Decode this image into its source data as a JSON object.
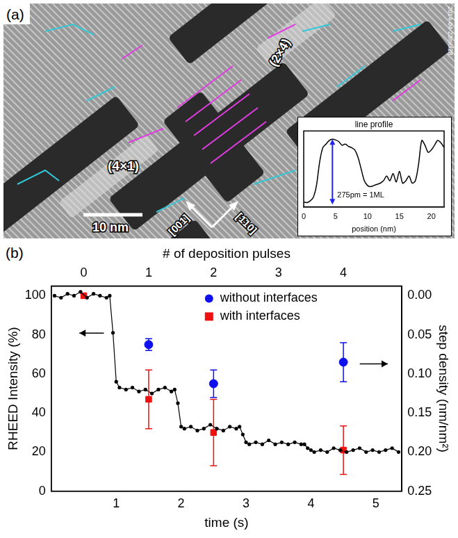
{
  "panel_a": {
    "label": "(a)",
    "stamp": "2014-04-23mul28",
    "regions": [
      "(4×1)",
      "(2×4)"
    ],
    "scale_bar": "10 nm",
    "directions": [
      "[001]",
      "[1̄10]"
    ]
  },
  "chart_data": [
    {
      "type": "line",
      "title": "line profile",
      "xlabel": "position (nm)",
      "x": [
        0,
        0.5,
        1,
        1.5,
        2,
        2.5,
        3,
        3.5,
        4,
        4.5,
        5,
        5.5,
        6,
        6.5,
        7,
        7.5,
        8,
        8.5,
        9,
        9.5,
        10,
        10.5,
        11,
        11.5,
        12,
        12.5,
        13,
        13.5,
        14,
        14.5,
        15,
        15.5,
        16,
        16.5,
        17,
        17.5,
        18,
        18.5,
        19,
        19.5,
        20,
        20.5,
        21,
        21.5,
        22
      ],
      "values": [
        10,
        8,
        15,
        30,
        80,
        180,
        240,
        255,
        270,
        275,
        272,
        265,
        250,
        255,
        245,
        240,
        230,
        200,
        150,
        100,
        80,
        75,
        80,
        85,
        90,
        100,
        120,
        100,
        130,
        95,
        140,
        90,
        100,
        120,
        90,
        100,
        170,
        270,
        250,
        220,
        230,
        250,
        270,
        260,
        240
      ],
      "color": "#000000",
      "xlim": [
        0,
        22
      ],
      "xticks": [
        0,
        5,
        10,
        15,
        20
      ],
      "ylim": [
        -10,
        310
      ],
      "tick_labels": "x",
      "grid": false,
      "annotation": {
        "text": "275pm = 1ML",
        "x": 4.5,
        "y_from": 0,
        "y_to": 275,
        "color": "#2222ee"
      }
    },
    {
      "type": "line",
      "label": "(b)",
      "xlabel": "time (s)",
      "ylabel": "RHEED Intensity (%)",
      "x2label": "# of deposition pulses",
      "y2label": "step density (nm/nm²)",
      "x": [
        0.05,
        0.15,
        0.25,
        0.35,
        0.45,
        0.55,
        0.65,
        0.75,
        0.85,
        0.9,
        0.95,
        1.0,
        1.05,
        1.15,
        1.25,
        1.35,
        1.45,
        1.55,
        1.65,
        1.75,
        1.85,
        1.9,
        1.95,
        2.0,
        2.05,
        2.15,
        2.25,
        2.35,
        2.45,
        2.55,
        2.65,
        2.75,
        2.85,
        2.9,
        2.95,
        3.0,
        3.05,
        3.15,
        3.25,
        3.35,
        3.45,
        3.55,
        3.65,
        3.75,
        3.85,
        3.9,
        3.95,
        4.0,
        4.05,
        4.15,
        4.25,
        4.35,
        4.45,
        4.55,
        4.65,
        4.75,
        4.85,
        4.95,
        5.05,
        5.15,
        5.25,
        5.35
      ],
      "values": [
        100,
        99,
        101,
        100,
        102,
        99,
        101,
        100,
        99,
        100,
        81,
        56,
        53,
        52,
        53,
        51,
        52,
        50,
        52,
        53,
        51,
        52,
        45,
        33,
        32,
        33,
        31,
        32,
        34,
        32,
        31,
        33,
        32,
        33,
        29,
        25,
        24,
        25,
        24,
        26,
        24,
        25,
        24,
        25,
        24,
        24,
        22,
        21,
        20,
        21,
        20,
        22,
        21,
        20,
        21,
        22,
        20,
        21,
        20,
        21,
        22,
        20
      ],
      "color": "#000000",
      "marker": "circle",
      "xlim": [
        0,
        5.4
      ],
      "xticks": [
        1,
        2,
        3,
        4,
        5
      ],
      "x2lim": [
        -0.5,
        4.9
      ],
      "x2ticks": [
        0,
        1,
        2,
        3,
        4
      ],
      "ylim": [
        0,
        105
      ],
      "yticks": [
        0,
        20,
        40,
        60,
        80,
        100
      ],
      "y2lim": [
        0.25,
        -0.0125
      ],
      "y2ticks": [
        {
          "value": 0,
          "label": "0.00"
        },
        0.05,
        {
          "value": 0.1,
          "label": "0.10"
        },
        0.15,
        {
          "value": 0.2,
          "label": "0.20"
        },
        0.25
      ],
      "grid": false,
      "legend": "top",
      "series": [
        {
          "name": "without interfaces",
          "color": "#1010ee",
          "type": "scatter",
          "marker": "circle",
          "axis": "y2",
          "x": [
            1.5,
            2.5,
            4.5
          ],
          "values": [
            0.0625,
            0.1125,
            0.085
          ],
          "errors": [
            0.0075,
            0.0175,
            0.025
          ]
        },
        {
          "name": "with interfaces",
          "color": "#ee1010",
          "type": "scatter",
          "marker": "square",
          "axis": "y2",
          "x": [
            0.5,
            1.5,
            2.5,
            4.5
          ],
          "values": [
            0,
            0.1325,
            0.175,
            0.1975
          ],
          "errors": [
            0,
            0.0375,
            0.0425,
            0.031
          ]
        }
      ]
    }
  ]
}
